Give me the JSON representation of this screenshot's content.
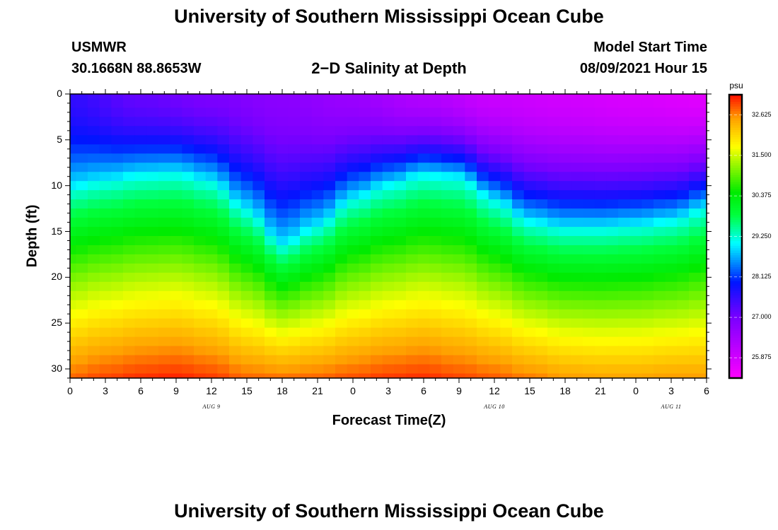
{
  "header": {
    "title_top": "University of Southern Mississippi Ocean Cube",
    "title_bottom": "University of Southern Mississippi Ocean Cube",
    "station_name": "USMWR",
    "station_coords": "30.1668N  88.8653W",
    "model_start_label": "Model Start Time",
    "model_start_value": "08/09/2021 Hour 15"
  },
  "chart_data": {
    "type": "heatmap",
    "title": "2−D Salinity at Depth",
    "xlabel": "Forecast Time(Z)",
    "ylabel": "Depth (ft)",
    "x_ticks": [
      "0",
      "3",
      "6",
      "9",
      "12",
      "15",
      "18",
      "21",
      "0",
      "3",
      "6",
      "9",
      "12",
      "15",
      "18",
      "21",
      "0",
      "3",
      "6"
    ],
    "x_range_hours": [
      0,
      54
    ],
    "date_labels": [
      {
        "text": "AUG 9",
        "hour": 12
      },
      {
        "text": "AUG 10",
        "hour": 36
      },
      {
        "text": "AUG 11",
        "hour": 51
      }
    ],
    "y_ticks": [
      0,
      5,
      10,
      15,
      20,
      25,
      30
    ],
    "y_range_ft": [
      0,
      31
    ],
    "colorbar": {
      "unit": "psu",
      "min": 25.3125,
      "max": 33.1875,
      "ticks": [
        "32.625",
        "31.500",
        "30.375",
        "29.250",
        "28.125",
        "27.000",
        "25.875"
      ],
      "tick_values": [
        32.625,
        31.5,
        30.375,
        29.25,
        28.125,
        27.0,
        25.875
      ]
    },
    "grid": {
      "nx": 55,
      "ny": 32,
      "dx_hours": 1,
      "dy_ft": 1
    },
    "surface_salinity_psu": [
      [
        0,
        27.6
      ],
      [
        6,
        27.2
      ],
      [
        12,
        27.0
      ],
      [
        18,
        26.8
      ],
      [
        24,
        26.6
      ],
      [
        30,
        26.3
      ],
      [
        36,
        26.0
      ],
      [
        42,
        25.9
      ],
      [
        48,
        25.8
      ],
      [
        54,
        25.7
      ]
    ],
    "isohaline_29psu_depth_ft": [
      [
        0,
        10
      ],
      [
        3,
        9.3
      ],
      [
        6,
        8.7
      ],
      [
        9,
        8.5
      ],
      [
        12,
        9.4
      ],
      [
        15,
        12.5
      ],
      [
        18,
        16.3
      ],
      [
        21,
        14.3
      ],
      [
        24,
        11.3
      ],
      [
        27,
        9.8
      ],
      [
        30,
        8.7
      ],
      [
        33,
        9.0
      ],
      [
        36,
        11.5
      ],
      [
        39,
        13.8
      ],
      [
        42,
        14.5
      ],
      [
        45,
        14.5
      ],
      [
        48,
        14.2
      ],
      [
        51,
        13.7
      ],
      [
        54,
        12.3
      ]
    ],
    "bottom_salinity_psu": [
      [
        0,
        32.8
      ],
      [
        3,
        32.95
      ],
      [
        6,
        33.05
      ],
      [
        9,
        33.1
      ],
      [
        12,
        33.0
      ],
      [
        15,
        32.8
      ],
      [
        18,
        32.75
      ],
      [
        21,
        32.8
      ],
      [
        24,
        32.9
      ],
      [
        27,
        33.0
      ],
      [
        30,
        33.05
      ],
      [
        33,
        32.95
      ],
      [
        36,
        32.85
      ],
      [
        39,
        32.7
      ],
      [
        42,
        32.55
      ],
      [
        45,
        32.5
      ],
      [
        48,
        32.5
      ],
      [
        51,
        32.55
      ],
      [
        54,
        32.55
      ]
    ]
  },
  "colors": {
    "background": "#ffffff",
    "text": "#000000"
  }
}
